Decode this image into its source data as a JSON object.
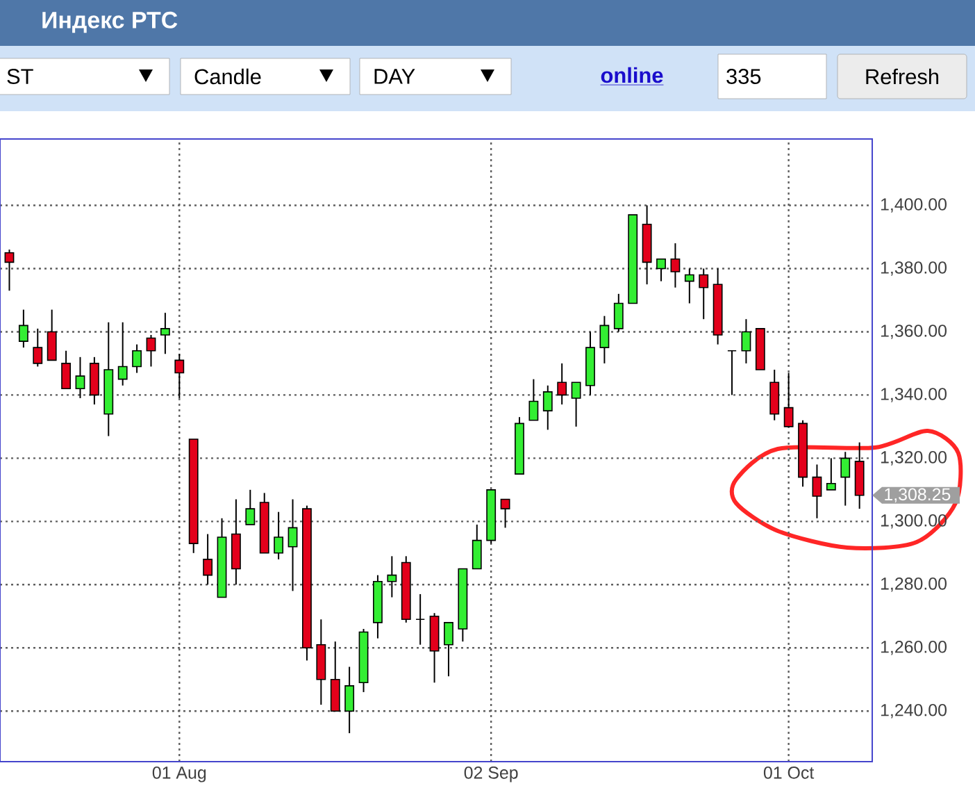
{
  "chart_data": {
    "type": "candlestick",
    "title": "Индекс РТС",
    "categories": [
      null,
      null,
      null,
      null,
      null,
      null,
      null,
      null,
      null,
      null,
      null,
      null,
      "01 Aug",
      null,
      null,
      null,
      null,
      null,
      null,
      null,
      null,
      null,
      null,
      null,
      null,
      null,
      null,
      null,
      null,
      null,
      null,
      null,
      null,
      null,
      "02 Sep",
      null,
      null,
      null,
      null,
      null,
      null,
      null,
      null,
      null,
      null,
      null,
      null,
      null,
      null,
      null,
      null,
      null,
      null,
      null,
      null,
      "01 Oct",
      null,
      null,
      null,
      null,
      null
    ],
    "ohlc": [
      [
        1385,
        1386,
        1373,
        1382
      ],
      [
        1357,
        1367,
        1355,
        1362
      ],
      [
        1355,
        1361,
        1349,
        1350
      ],
      [
        1360,
        1367,
        1351,
        1351
      ],
      [
        1350,
        1354,
        1342,
        1342
      ],
      [
        1342,
        1352,
        1339,
        1346
      ],
      [
        1350,
        1352,
        1337,
        1340
      ],
      [
        1334,
        1363,
        1327,
        1348
      ],
      [
        1345,
        1363,
        1343,
        1349
      ],
      [
        1349,
        1356,
        1347,
        1354
      ],
      [
        1358,
        1359,
        1349,
        1354
      ],
      [
        1359,
        1366,
        1353,
        1361
      ],
      [
        1351,
        1353,
        1339,
        1347
      ],
      [
        1326,
        1326,
        1290,
        1293
      ],
      [
        1288,
        1296,
        1280,
        1283
      ],
      [
        1276,
        1301,
        1276,
        1295
      ],
      [
        1296,
        1307,
        1280,
        1285
      ],
      [
        1299,
        1310,
        1299,
        1304
      ],
      [
        1306,
        1309,
        1290,
        1290
      ],
      [
        1290,
        1303,
        1288,
        1295
      ],
      [
        1292,
        1307,
        1278,
        1298
      ],
      [
        1304,
        1305,
        1256,
        1260
      ],
      [
        1261,
        1269,
        1242,
        1250
      ],
      [
        1250,
        1262,
        1240,
        1240
      ],
      [
        1240,
        1254,
        1233,
        1248
      ],
      [
        1249,
        1266,
        1246,
        1265
      ],
      [
        1268,
        1283,
        1263,
        1281
      ],
      [
        1281,
        1289,
        1276,
        1283
      ],
      [
        1287,
        1289,
        1268,
        1269
      ],
      [
        1269,
        1277,
        1261,
        1269
      ],
      [
        1270,
        1271,
        1249,
        1259
      ],
      [
        1261,
        1268,
        1251,
        1268
      ],
      [
        1266,
        1285,
        1262,
        1285
      ],
      [
        1285,
        1299,
        1285,
        1294
      ],
      [
        1294,
        1310,
        1293,
        1310
      ],
      [
        1307,
        1307,
        1298,
        1304
      ],
      [
        1315,
        1333,
        1315,
        1331
      ],
      [
        1332,
        1345,
        1332,
        1338
      ],
      [
        1335,
        1343,
        1329,
        1341
      ],
      [
        1344,
        1350,
        1337,
        1340
      ],
      [
        1339,
        1344,
        1330,
        1344
      ],
      [
        1343,
        1360,
        1340,
        1355
      ],
      [
        1355,
        1365,
        1350,
        1362
      ],
      [
        1361,
        1372,
        1360,
        1369
      ],
      [
        1369,
        1397,
        1369,
        1397
      ],
      [
        1394,
        1400,
        1375,
        1382
      ],
      [
        1380,
        1383,
        1376,
        1383
      ],
      [
        1383,
        1388,
        1374,
        1379
      ],
      [
        1376,
        1380,
        1369,
        1378
      ],
      [
        1378,
        1380,
        1364,
        1374
      ],
      [
        1375,
        1380,
        1356,
        1359
      ],
      [
        1354,
        1354,
        1340,
        1354
      ],
      [
        1354,
        1364,
        1350,
        1360
      ],
      [
        1361,
        1361,
        1348,
        1348
      ],
      [
        1344,
        1348,
        1332,
        1334
      ],
      [
        1336,
        1347,
        1330,
        1330
      ],
      [
        1331,
        1332,
        1311,
        1314
      ],
      [
        1314,
        1318,
        1301,
        1308
      ],
      [
        1310,
        1320,
        1310,
        1312
      ],
      [
        1314,
        1322,
        1305,
        1320
      ],
      [
        1319,
        1325,
        1304,
        1308.25
      ]
    ],
    "colors": [
      "#e3001b",
      "#33ee33",
      "#e3001b",
      "#e3001b",
      "#e3001b",
      "#33ee33",
      "#e3001b",
      "#33ee33",
      "#33ee33",
      "#33ee33",
      "#e3001b",
      "#33ee33",
      "#e3001b",
      "#e3001b",
      "#e3001b",
      "#33ee33",
      "#e3001b",
      "#33ee33",
      "#e3001b",
      "#33ee33",
      "#33ee33",
      "#e3001b",
      "#e3001b",
      "#e3001b",
      "#33ee33",
      "#33ee33",
      "#33ee33",
      "#33ee33",
      "#e3001b",
      "#000000",
      "#e3001b",
      "#33ee33",
      "#33ee33",
      "#33ee33",
      "#33ee33",
      "#e3001b",
      "#33ee33",
      "#33ee33",
      "#33ee33",
      "#e3001b",
      "#33ee33",
      "#33ee33",
      "#33ee33",
      "#33ee33",
      "#33ee33",
      "#e3001b",
      "#33ee33",
      "#e3001b",
      "#33ee33",
      "#e3001b",
      "#e3001b",
      "#000000",
      "#33ee33",
      "#e3001b",
      "#e3001b",
      "#e3001b",
      "#e3001b",
      "#e3001b",
      "#33ee33",
      "#33ee33",
      "#e3001b"
    ],
    "ylim": [
      1224,
      1421
    ],
    "yticks": [
      {
        "value": 1240,
        "label": "1,240.00"
      },
      {
        "value": 1260,
        "label": "1,260.00"
      },
      {
        "value": 1280,
        "label": "1,280.00"
      },
      {
        "value": 1300,
        "label": "1,300.00"
      },
      {
        "value": 1320,
        "label": "1,320.00"
      },
      {
        "value": 1340,
        "label": "1,340.00"
      },
      {
        "value": 1360,
        "label": "1,360.00"
      },
      {
        "value": 1380,
        "label": "1,380.00"
      },
      {
        "value": 1400,
        "label": "1,400.00"
      }
    ],
    "grid": true,
    "annotations": [
      "ST",
      "Candle",
      "DAY",
      "online",
      "335",
      "Refresh",
      "1,308.25"
    ]
  }
}
